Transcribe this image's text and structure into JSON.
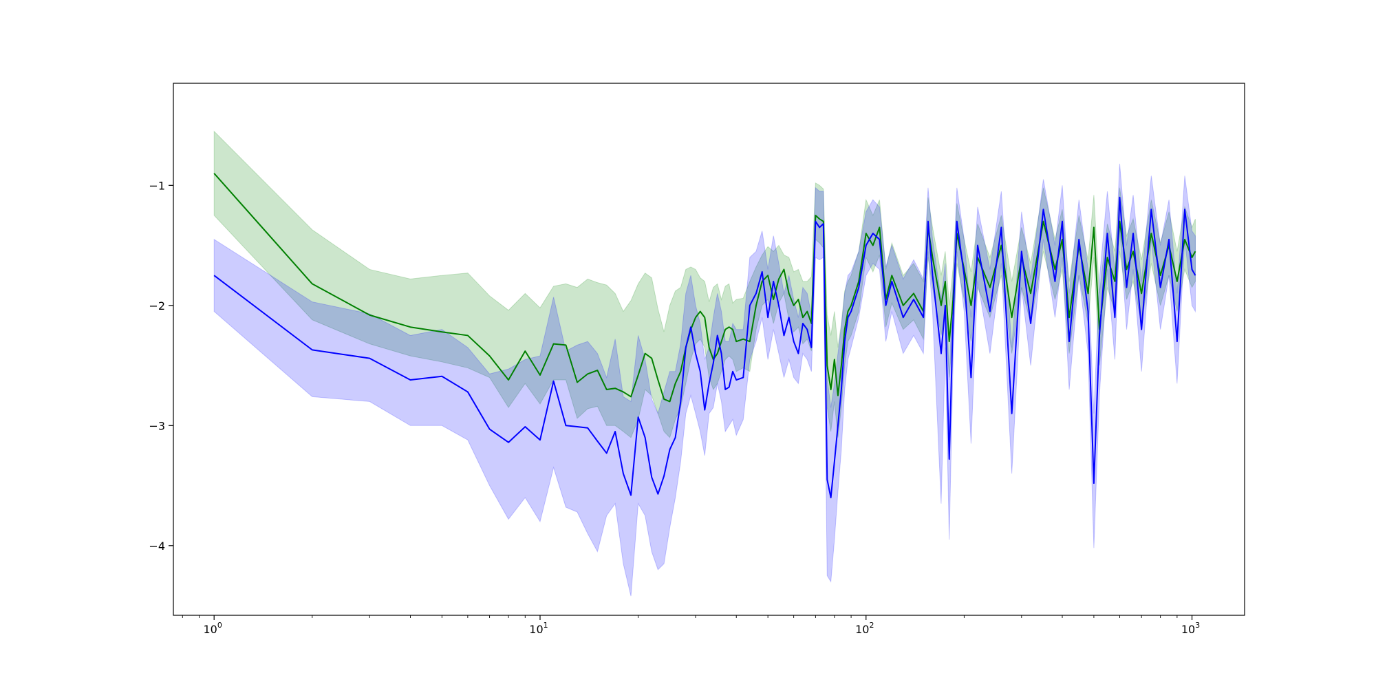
{
  "chart_data": {
    "type": "line",
    "title": "",
    "xlabel": "",
    "ylabel": "",
    "x_scale": "log",
    "xlim": [
      0.75,
      1450
    ],
    "ylim": [
      -4.58,
      -0.15
    ],
    "x_ticks": [
      {
        "value": 1,
        "base": "10",
        "exp": "0"
      },
      {
        "value": 10,
        "base": "10",
        "exp": "1"
      },
      {
        "value": 100,
        "base": "10",
        "exp": "2"
      },
      {
        "value": 1000,
        "base": "10",
        "exp": "3"
      }
    ],
    "y_ticks": [
      {
        "value": -1,
        "label": "−1"
      },
      {
        "value": -2,
        "label": "−2"
      },
      {
        "value": -3,
        "label": "−3"
      },
      {
        "value": -4,
        "label": "−4"
      }
    ],
    "grid": false,
    "legend": "none",
    "series": [
      {
        "color": "#008000",
        "band_color": "#008000",
        "band_opacity": 0.2,
        "x": [
          1,
          2,
          3,
          4,
          5,
          6,
          7,
          8,
          9,
          10,
          11,
          12,
          13,
          14,
          15,
          16,
          17,
          18,
          19,
          20,
          21,
          22,
          23,
          24,
          25,
          26,
          27,
          28,
          29,
          30,
          31,
          32,
          33,
          34,
          35,
          36,
          37,
          38,
          39,
          40,
          42,
          44,
          46,
          48,
          50,
          52,
          54,
          56,
          58,
          60,
          62,
          64,
          66,
          68,
          70,
          72,
          74,
          76,
          78,
          80,
          82,
          84,
          86,
          88,
          90,
          95,
          100,
          105,
          110,
          115,
          120,
          130,
          140,
          150,
          155,
          160,
          170,
          175,
          180,
          185,
          190,
          200,
          210,
          220,
          240,
          260,
          280,
          300,
          320,
          350,
          380,
          400,
          420,
          450,
          480,
          500,
          520,
          550,
          580,
          600,
          630,
          660,
          700,
          750,
          800,
          850,
          900,
          950,
          1000,
          1024
        ],
        "y": [
          -0.9,
          -1.82,
          -2.08,
          -2.18,
          -2.22,
          -2.25,
          -2.42,
          -2.62,
          -2.38,
          -2.58,
          -2.32,
          -2.33,
          -2.64,
          -2.57,
          -2.54,
          -2.7,
          -2.69,
          -2.72,
          -2.76,
          -2.58,
          -2.4,
          -2.44,
          -2.62,
          -2.78,
          -2.8,
          -2.65,
          -2.55,
          -2.35,
          -2.2,
          -2.1,
          -2.05,
          -2.1,
          -2.35,
          -2.45,
          -2.4,
          -2.3,
          -2.2,
          -2.18,
          -2.2,
          -2.3,
          -2.28,
          -2.3,
          -2.0,
          -1.8,
          -1.75,
          -1.95,
          -1.78,
          -1.7,
          -1.9,
          -2.0,
          -1.95,
          -2.1,
          -2.05,
          -2.15,
          -1.25,
          -1.28,
          -1.3,
          -2.5,
          -2.7,
          -2.45,
          -2.75,
          -2.5,
          -2.2,
          -2.05,
          -2.0,
          -1.8,
          -1.4,
          -1.5,
          -1.35,
          -1.95,
          -1.75,
          -2.0,
          -1.9,
          -2.05,
          -1.35,
          -1.6,
          -2.0,
          -1.8,
          -2.3,
          -1.95,
          -1.4,
          -1.7,
          -2.0,
          -1.6,
          -1.85,
          -1.5,
          -2.1,
          -1.6,
          -1.9,
          -1.3,
          -1.7,
          -1.45,
          -2.1,
          -1.5,
          -1.9,
          -1.35,
          -2.2,
          -1.6,
          -1.8,
          -1.3,
          -1.7,
          -1.55,
          -1.9,
          -1.4,
          -1.75,
          -1.5,
          -1.8,
          -1.45,
          -1.6,
          -1.55
        ],
        "lower": [
          -1.25,
          -2.12,
          -2.32,
          -2.42,
          -2.47,
          -2.52,
          -2.6,
          -2.85,
          -2.65,
          -2.82,
          -2.62,
          -2.62,
          -2.94,
          -2.86,
          -2.84,
          -3.0,
          -3.0,
          -3.05,
          -3.1,
          -2.95,
          -2.7,
          -2.75,
          -2.9,
          -3.05,
          -3.1,
          -2.95,
          -2.85,
          -2.65,
          -2.45,
          -2.32,
          -2.28,
          -2.35,
          -2.6,
          -2.7,
          -2.65,
          -2.55,
          -2.45,
          -2.42,
          -2.45,
          -2.55,
          -2.52,
          -2.55,
          -2.2,
          -2.0,
          -1.95,
          -2.15,
          -1.98,
          -1.9,
          -2.12,
          -2.22,
          -2.18,
          -2.32,
          -2.28,
          -2.38,
          -1.45,
          -1.48,
          -1.52,
          -2.85,
          -3.05,
          -2.8,
          -3.1,
          -2.85,
          -2.5,
          -2.3,
          -2.25,
          -2.05,
          -1.6,
          -1.72,
          -1.58,
          -2.18,
          -1.98,
          -2.2,
          -2.12,
          -2.28,
          -1.6,
          -1.85,
          -2.25,
          -2.05,
          -2.6,
          -2.22,
          -1.65,
          -1.95,
          -2.3,
          -1.85,
          -2.1,
          -1.75,
          -2.4,
          -1.85,
          -2.15,
          -1.55,
          -1.95,
          -1.7,
          -2.4,
          -1.75,
          -2.15,
          -1.6,
          -2.5,
          -1.85,
          -2.05,
          -1.55,
          -1.95,
          -1.8,
          -2.15,
          -1.65,
          -2.0,
          -1.75,
          -2.05,
          -1.7,
          -1.85,
          -1.8
        ],
        "upper": [
          -0.55,
          -1.37,
          -1.7,
          -1.78,
          -1.75,
          -1.73,
          -1.92,
          -2.04,
          -1.9,
          -2.02,
          -1.84,
          -1.82,
          -1.85,
          -1.78,
          -1.81,
          -1.83,
          -1.9,
          -2.05,
          -1.96,
          -1.82,
          -1.73,
          -1.77,
          -2.03,
          -2.22,
          -2.0,
          -1.88,
          -1.85,
          -1.7,
          -1.68,
          -1.7,
          -1.77,
          -1.8,
          -1.97,
          -1.85,
          -1.82,
          -1.95,
          -1.84,
          -1.82,
          -1.98,
          -1.95,
          -1.94,
          -1.8,
          -1.68,
          -1.58,
          -1.51,
          -1.55,
          -1.5,
          -1.58,
          -1.6,
          -1.72,
          -1.7,
          -1.8,
          -1.8,
          -1.76,
          -0.98,
          -1.0,
          -1.03,
          -2.08,
          -2.25,
          -2.05,
          -2.35,
          -2.15,
          -1.88,
          -1.8,
          -1.75,
          -1.55,
          -1.12,
          -1.25,
          -1.12,
          -1.7,
          -1.48,
          -1.75,
          -1.65,
          -1.8,
          -1.1,
          -1.35,
          -1.75,
          -1.55,
          -2.0,
          -1.68,
          -1.15,
          -1.45,
          -1.72,
          -1.32,
          -1.6,
          -1.25,
          -1.8,
          -1.35,
          -1.65,
          -1.02,
          -1.45,
          -1.2,
          -1.8,
          -1.25,
          -1.62,
          -1.08,
          -1.9,
          -1.32,
          -1.55,
          -1.02,
          -1.42,
          -1.28,
          -1.62,
          -1.12,
          -1.48,
          -1.22,
          -1.55,
          -1.18,
          -1.35,
          -1.28
        ]
      },
      {
        "color": "#0000ff",
        "band_color": "#0000ff",
        "band_opacity": 0.2,
        "x": [
          1,
          2,
          3,
          4,
          5,
          6,
          7,
          8,
          9,
          10,
          11,
          12,
          13,
          14,
          15,
          16,
          17,
          18,
          19,
          20,
          21,
          22,
          23,
          24,
          25,
          26,
          27,
          28,
          29,
          30,
          31,
          32,
          33,
          34,
          35,
          36,
          37,
          38,
          39,
          40,
          42,
          44,
          46,
          48,
          50,
          52,
          54,
          56,
          58,
          60,
          62,
          64,
          66,
          68,
          70,
          72,
          74,
          76,
          78,
          80,
          82,
          84,
          86,
          88,
          90,
          95,
          100,
          105,
          110,
          115,
          120,
          130,
          140,
          150,
          155,
          160,
          170,
          175,
          180,
          185,
          190,
          200,
          210,
          220,
          240,
          260,
          280,
          300,
          320,
          350,
          380,
          400,
          420,
          450,
          480,
          500,
          520,
          550,
          580,
          600,
          630,
          660,
          700,
          750,
          800,
          850,
          900,
          950,
          1000,
          1024
        ],
        "y": [
          -1.75,
          -2.37,
          -2.44,
          -2.62,
          -2.59,
          -2.72,
          -3.03,
          -3.14,
          -3.01,
          -3.12,
          -2.63,
          -3.0,
          -3.01,
          -3.02,
          -3.13,
          -3.23,
          -3.05,
          -3.4,
          -3.58,
          -2.93,
          -3.1,
          -3.43,
          -3.57,
          -3.42,
          -3.2,
          -3.1,
          -2.8,
          -2.35,
          -2.18,
          -2.4,
          -2.55,
          -2.87,
          -2.65,
          -2.48,
          -2.25,
          -2.4,
          -2.7,
          -2.68,
          -2.55,
          -2.62,
          -2.6,
          -2.0,
          -1.9,
          -1.72,
          -2.1,
          -1.8,
          -2.0,
          -2.25,
          -2.1,
          -2.3,
          -2.4,
          -2.15,
          -2.2,
          -2.35,
          -1.3,
          -1.35,
          -1.32,
          -3.45,
          -3.6,
          -3.3,
          -3.0,
          -2.7,
          -2.3,
          -2.1,
          -2.05,
          -1.85,
          -1.5,
          -1.4,
          -1.45,
          -2.0,
          -1.8,
          -2.1,
          -1.95,
          -2.1,
          -1.3,
          -1.75,
          -2.4,
          -2.0,
          -3.28,
          -2.1,
          -1.3,
          -1.75,
          -2.6,
          -1.5,
          -2.05,
          -1.35,
          -2.9,
          -1.55,
          -2.15,
          -1.2,
          -1.8,
          -1.3,
          -2.3,
          -1.45,
          -2.05,
          -3.48,
          -2.25,
          -1.4,
          -2.1,
          -1.1,
          -1.85,
          -1.4,
          -2.2,
          -1.2,
          -1.85,
          -1.45,
          -2.3,
          -1.2,
          -1.7,
          -1.75
        ],
        "lower": [
          -2.05,
          -2.76,
          -2.8,
          -3.0,
          -3.0,
          -3.12,
          -3.5,
          -3.78,
          -3.6,
          -3.8,
          -3.35,
          -3.68,
          -3.72,
          -3.9,
          -4.05,
          -3.75,
          -3.65,
          -4.15,
          -4.42,
          -3.65,
          -3.75,
          -4.05,
          -4.2,
          -4.15,
          -3.85,
          -3.6,
          -3.3,
          -2.9,
          -2.75,
          -2.9,
          -3.05,
          -3.25,
          -2.9,
          -2.85,
          -2.65,
          -2.8,
          -3.05,
          -3.0,
          -2.95,
          -3.08,
          -2.95,
          -2.45,
          -2.3,
          -2.1,
          -2.45,
          -2.2,
          -2.4,
          -2.6,
          -2.45,
          -2.6,
          -2.65,
          -2.4,
          -2.45,
          -2.55,
          -1.6,
          -1.62,
          -1.6,
          -4.25,
          -4.3,
          -3.95,
          -3.55,
          -3.2,
          -2.7,
          -2.45,
          -2.35,
          -2.1,
          -1.75,
          -1.65,
          -1.7,
          -2.3,
          -2.05,
          -2.4,
          -2.25,
          -2.4,
          -1.55,
          -2.05,
          -3.65,
          -2.35,
          -3.95,
          -2.45,
          -1.55,
          -2.05,
          -3.15,
          -1.8,
          -2.4,
          -1.65,
          -3.4,
          -1.85,
          -2.5,
          -1.45,
          -2.1,
          -1.6,
          -2.7,
          -1.75,
          -2.4,
          -4.02,
          -2.75,
          -1.7,
          -2.45,
          -1.35,
          -2.2,
          -1.7,
          -2.55,
          -1.45,
          -2.2,
          -1.75,
          -2.65,
          -1.45,
          -2.0,
          -2.05
        ],
        "upper": [
          -1.45,
          -1.97,
          -2.07,
          -2.25,
          -2.2,
          -2.35,
          -2.57,
          -2.53,
          -2.45,
          -2.42,
          -1.93,
          -2.38,
          -2.33,
          -2.3,
          -2.4,
          -2.6,
          -2.28,
          -2.76,
          -2.8,
          -2.25,
          -2.45,
          -2.78,
          -2.9,
          -2.72,
          -2.55,
          -2.55,
          -2.32,
          -1.9,
          -1.75,
          -2.0,
          -2.15,
          -2.45,
          -2.35,
          -2.1,
          -1.9,
          -2.05,
          -2.3,
          -2.3,
          -2.15,
          -2.2,
          -2.2,
          -1.6,
          -1.55,
          -1.38,
          -1.7,
          -1.42,
          -1.65,
          -1.9,
          -1.75,
          -1.95,
          -2.1,
          -1.85,
          -1.9,
          -2.08,
          -1.02,
          -1.05,
          -1.05,
          -2.6,
          -2.85,
          -2.65,
          -2.4,
          -2.18,
          -1.9,
          -1.75,
          -1.72,
          -1.55,
          -1.22,
          -1.12,
          -1.18,
          -1.68,
          -1.5,
          -1.78,
          -1.62,
          -1.78,
          -1.02,
          -1.45,
          -1.95,
          -1.65,
          -2.62,
          -1.75,
          -1.02,
          -1.45,
          -2.1,
          -1.18,
          -1.7,
          -1.05,
          -2.35,
          -1.22,
          -1.78,
          -0.95,
          -1.5,
          -1.0,
          -1.9,
          -1.12,
          -1.7,
          -2.9,
          -1.78,
          -1.05,
          -1.72,
          -0.82,
          -1.5,
          -1.08,
          -1.8,
          -0.92,
          -1.5,
          -1.12,
          -1.9,
          -0.92,
          -1.38,
          -1.42
        ]
      }
    ]
  }
}
